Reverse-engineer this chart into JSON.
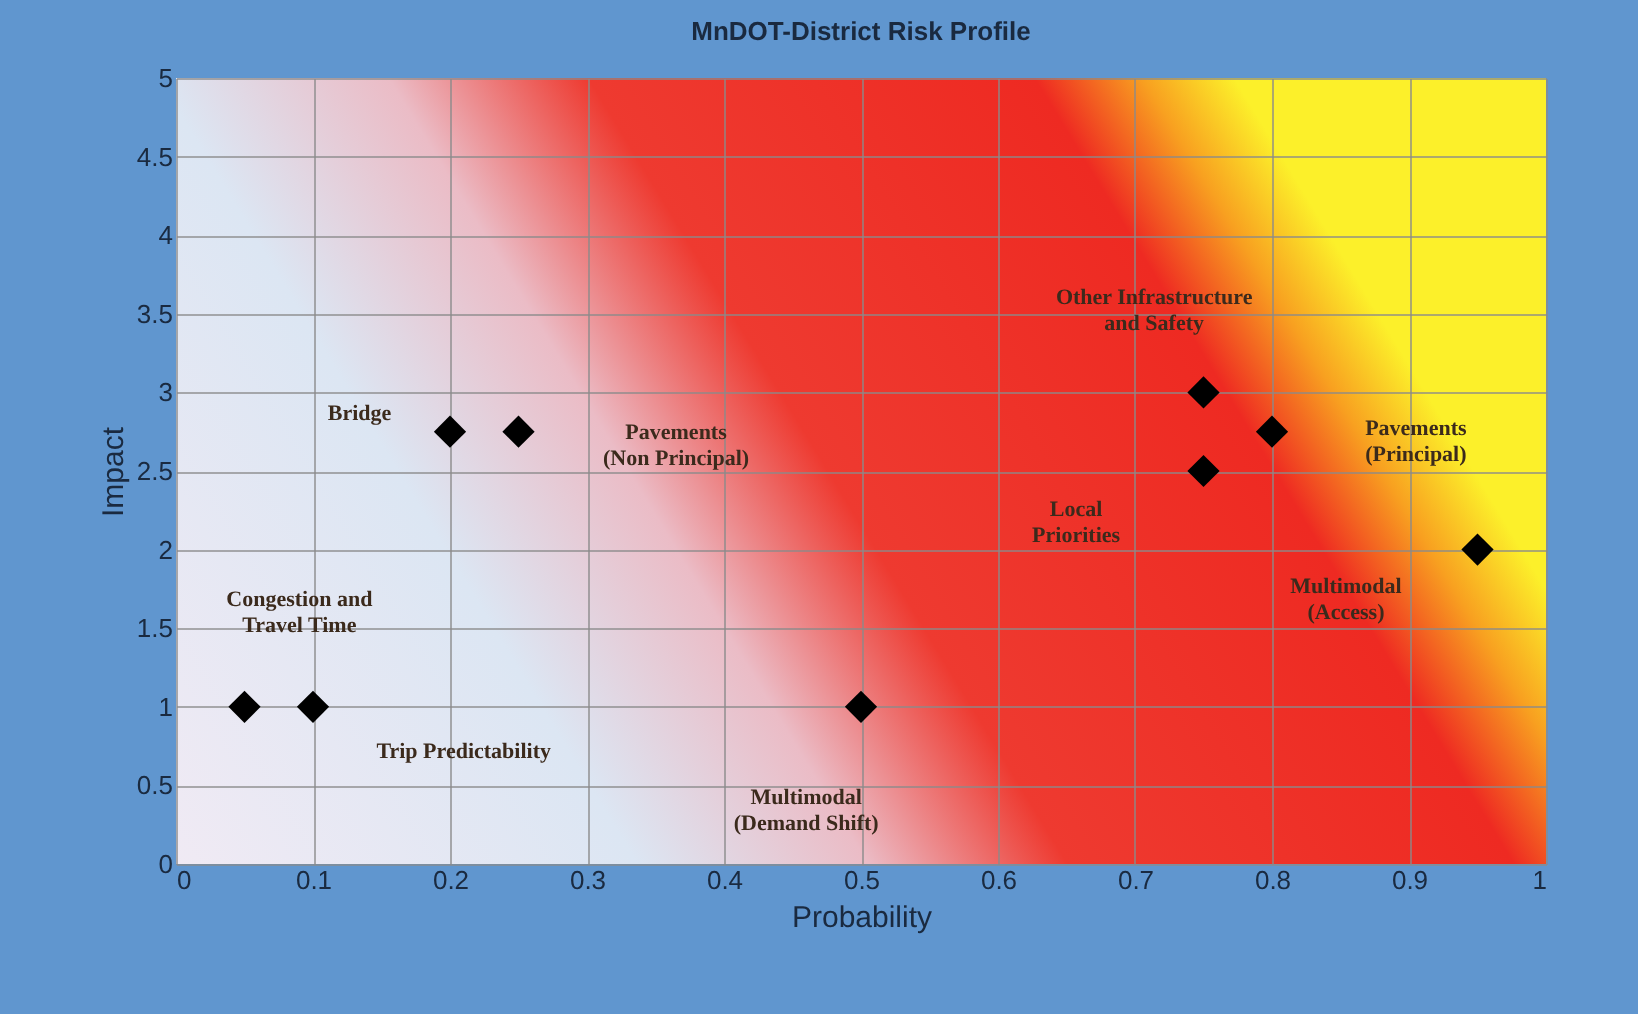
{
  "chart_data": {
    "type": "scatter",
    "title": "MnDOT-District Risk Profile",
    "xlabel": "Probability",
    "ylabel": "Impact",
    "x": [
      0.05,
      0.1,
      0.2,
      0.25,
      0.5,
      0.75,
      0.75,
      0.8,
      0.95
    ],
    "series": [
      {
        "color": "#000000",
        "values": [
          1,
          1,
          2.75,
          2.75,
          1,
          3,
          2.5,
          2.75,
          2
        ]
      }
    ],
    "marker": "diamond",
    "grid": true,
    "xlim": [
      0,
      1
    ],
    "ylim": [
      0,
      5
    ],
    "xticks": [
      0,
      0.1,
      0.2,
      0.3,
      0.4,
      0.5,
      0.6,
      0.7,
      0.8,
      0.9,
      1
    ],
    "yticks": [
      0,
      0.5,
      1,
      1.5,
      2,
      2.5,
      3,
      3.5,
      4,
      4.5,
      5
    ],
    "annotations": [
      "Bridge",
      "Pavements\n(Non Principal)",
      "Congestion and\nTravel Time",
      "Trip Predictability",
      "Multimodal\n(Demand Shift)",
      "Other Infrastructure\nand Safety",
      "Pavements\n(Principal)",
      "Local\nPriorities",
      "Multimodal\n(Access)"
    ]
  }
}
